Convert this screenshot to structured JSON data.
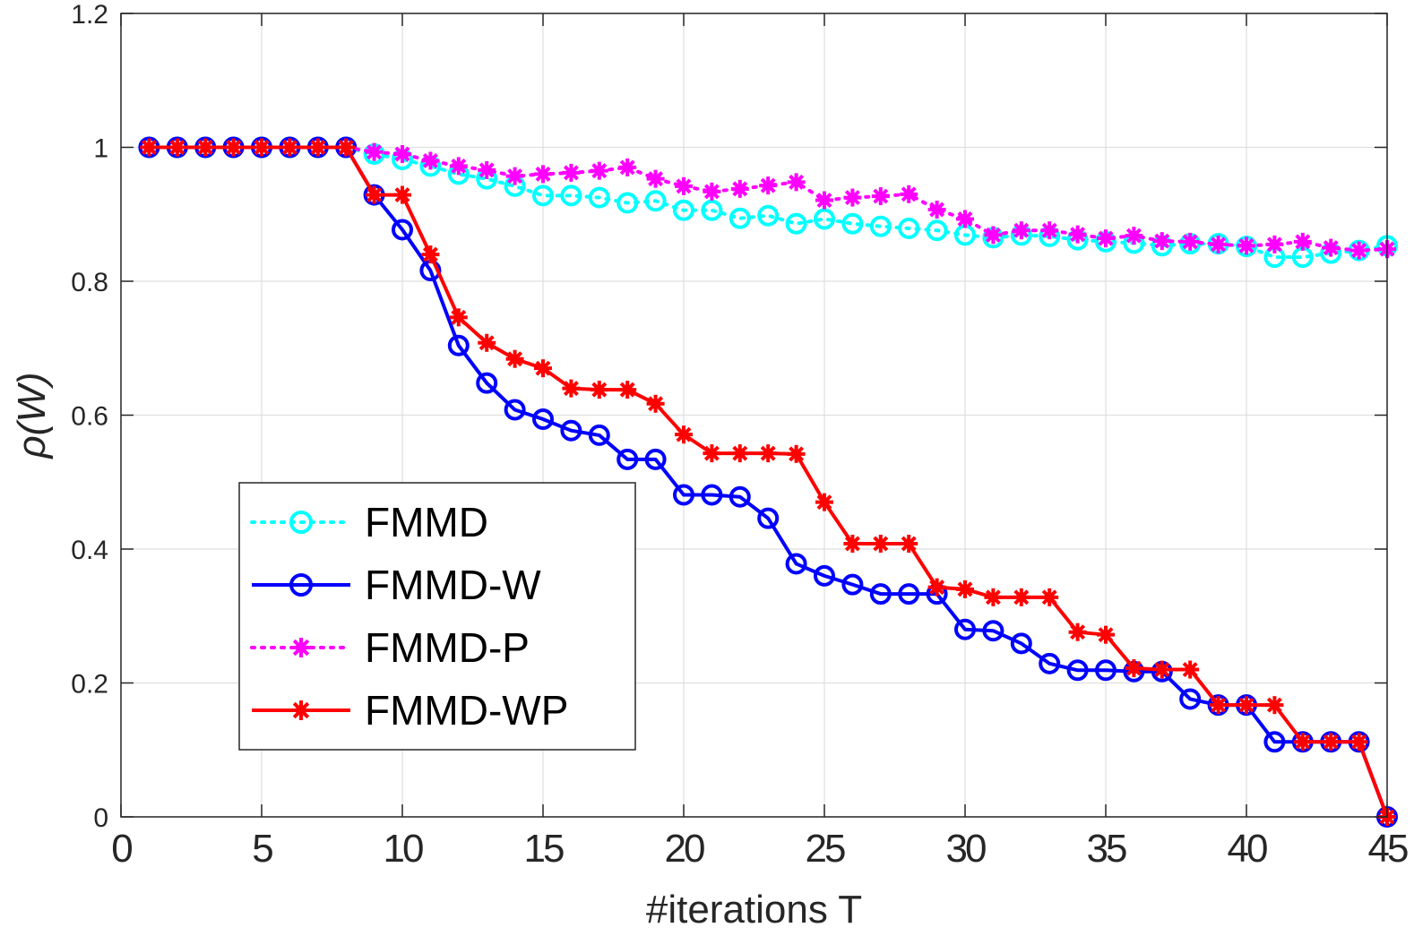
{
  "chart_data": {
    "type": "line",
    "title": "",
    "xlabel": "#iterations T",
    "ylabel": "ρ(W)",
    "xlim": [
      0,
      45
    ],
    "ylim": [
      0,
      1.2
    ],
    "xticks": [
      0,
      5,
      10,
      15,
      20,
      25,
      30,
      35,
      40,
      45
    ],
    "yticks": [
      0,
      0.2,
      0.4,
      0.6,
      0.8,
      1,
      1.2
    ],
    "ytick_labels": [
      "0",
      "0.2",
      "0.4",
      "0.6",
      "0.8",
      "1",
      "1.2"
    ],
    "xtick_labels": [
      "0",
      "5",
      "10",
      "15",
      "20",
      "25",
      "30",
      "35",
      "40",
      "45"
    ],
    "grid": true,
    "legend_position": "lower-left",
    "x": [
      1,
      2,
      3,
      4,
      5,
      6,
      7,
      8,
      9,
      10,
      11,
      12,
      13,
      14,
      15,
      16,
      17,
      18,
      19,
      20,
      21,
      22,
      23,
      24,
      25,
      26,
      27,
      28,
      29,
      30,
      31,
      32,
      33,
      34,
      35,
      36,
      37,
      38,
      39,
      40,
      41,
      42,
      43,
      44,
      45
    ],
    "series": [
      {
        "name": "FMMD",
        "color": "#00ffff",
        "line_style": "dotted",
        "marker": "circle",
        "values": [
          1,
          1,
          1,
          1,
          1,
          1,
          1,
          1,
          0.99,
          0.982,
          0.972,
          0.96,
          0.953,
          0.942,
          0.928,
          0.928,
          0.925,
          0.917,
          0.92,
          0.906,
          0.906,
          0.894,
          0.898,
          0.886,
          0.893,
          0.886,
          0.882,
          0.879,
          0.876,
          0.869,
          0.865,
          0.869,
          0.867,
          0.862,
          0.859,
          0.857,
          0.853,
          0.856,
          0.856,
          0.852,
          0.836,
          0.836,
          0.842,
          0.846,
          0.853
        ]
      },
      {
        "name": "FMMD-W",
        "color": "#0000ff",
        "line_style": "solid",
        "marker": "circle",
        "values": [
          1,
          1,
          1,
          1,
          1,
          1,
          1,
          1,
          0.929,
          0.877,
          0.816,
          0.704,
          0.648,
          0.608,
          0.594,
          0.577,
          0.57,
          0.534,
          0.534,
          0.481,
          0.481,
          0.478,
          0.446,
          0.378,
          0.36,
          0.347,
          0.333,
          0.333,
          0.333,
          0.28,
          0.278,
          0.259,
          0.229,
          0.219,
          0.219,
          0.217,
          0.217,
          0.176,
          0.167,
          0.167,
          0.112,
          0.112,
          0.112,
          0.112,
          0
        ]
      },
      {
        "name": "FMMD-P",
        "color": "#ff00ff",
        "line_style": "dotted",
        "marker": "asterisk",
        "values": [
          1,
          1,
          1,
          1,
          1,
          1,
          1,
          1,
          0.993,
          0.99,
          0.98,
          0.972,
          0.966,
          0.957,
          0.96,
          0.962,
          0.965,
          0.97,
          0.953,
          0.942,
          0.934,
          0.938,
          0.943,
          0.948,
          0.921,
          0.925,
          0.927,
          0.93,
          0.907,
          0.893,
          0.869,
          0.876,
          0.876,
          0.87,
          0.864,
          0.868,
          0.86,
          0.859,
          0.855,
          0.853,
          0.855,
          0.859,
          0.85,
          0.846,
          0.848
        ]
      },
      {
        "name": "FMMD-WP",
        "color": "#ff0000",
        "line_style": "solid",
        "marker": "asterisk",
        "values": [
          1,
          1,
          1,
          1,
          1,
          1,
          1,
          1,
          0.929,
          0.929,
          0.84,
          0.746,
          0.708,
          0.684,
          0.67,
          0.64,
          0.638,
          0.638,
          0.617,
          0.571,
          0.543,
          0.543,
          0.543,
          0.542,
          0.47,
          0.408,
          0.408,
          0.408,
          0.343,
          0.34,
          0.328,
          0.328,
          0.328,
          0.276,
          0.272,
          0.222,
          0.22,
          0.22,
          0.167,
          0.167,
          0.167,
          0.112,
          0.112,
          0.112,
          0
        ]
      }
    ]
  }
}
